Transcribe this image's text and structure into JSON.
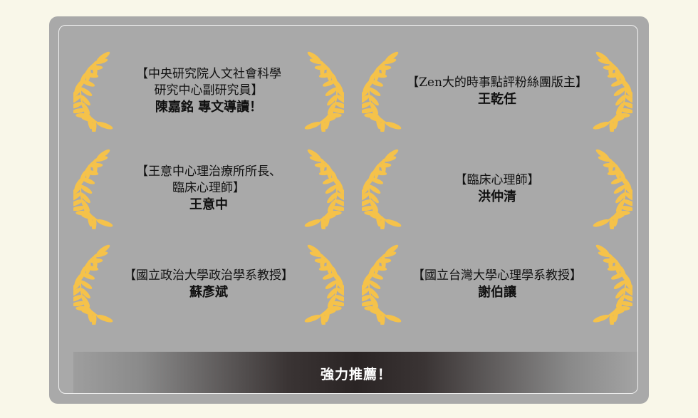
{
  "recommenders": [
    {
      "title": "【中央研究院人文社會科學\n研究中心副研究員】",
      "name": "陳嘉銘 專文導讀！"
    },
    {
      "title": "【Zen大的時事點評粉絲團版主】",
      "name": "王乾任"
    },
    {
      "title": "【王意中心理治療所所長、\n臨床心理師】",
      "name": "王意中"
    },
    {
      "title": "【臨床心理師】",
      "name": "洪仲清"
    },
    {
      "title": "【國立政治大學政治學系教授】",
      "name": "蘇彥斌"
    },
    {
      "title": "【國立台灣大學心理學系教授】",
      "name": "謝伯讓"
    }
  ],
  "banner": {
    "label": "強力推薦！"
  },
  "colors": {
    "laurel": "#f5c24a",
    "panel": "#a9a9a9",
    "background": "#f9f7e9"
  },
  "icons": {
    "wreath": "laurel-wreath-icon"
  }
}
